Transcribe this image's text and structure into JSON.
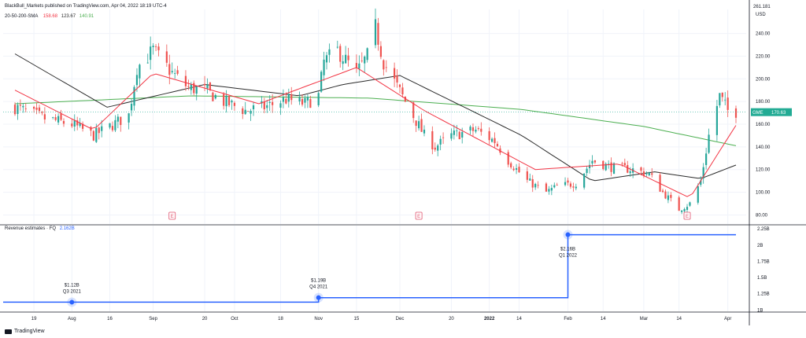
{
  "header": {
    "publisher": "BlackBull_Markets published on TradingView.com, Apr 04, 2022 18:19 UTC-4",
    "ma_label": "20-50-200-SMA",
    "ma_values": [
      "158.68",
      "123.67",
      "140.91"
    ]
  },
  "ticker": {
    "symbol": "GME",
    "price": "170.63"
  },
  "currency": "USD",
  "brand": "TradingView",
  "colors": {
    "up": "#26a69a",
    "down": "#ef5350",
    "sma20": "#f23645",
    "sma50": "#2b2b2b",
    "sma200": "#4caf50",
    "revenue": "#2962ff",
    "badge": "#22ab94",
    "earnings": "#e0506b"
  },
  "revenue_label": {
    "title": "Revenue estimates · FQ",
    "value": "2.162B"
  },
  "revenue_points": [
    {
      "value": "$1.12B",
      "period": "Q3 2021"
    },
    {
      "value": "$1.19B",
      "period": "Q4 2021"
    },
    {
      "value": "$2.16B",
      "period": "Q1 2022"
    }
  ],
  "earnings_markers": [
    "E",
    "E",
    "E"
  ],
  "price_axis": {
    "top_tick": "261.181",
    "ticks": [
      "240.00",
      "220.00",
      "200.00",
      "180.00",
      "160.00",
      "140.00",
      "120.00",
      "100.00",
      "80.00"
    ]
  },
  "revenue_axis": {
    "ticks": [
      "2.25B",
      "2B",
      "1.75B",
      "1.5B",
      "1.25B",
      "1B"
    ]
  },
  "time_axis": [
    "19",
    "Aug",
    "16",
    "Sep",
    "20",
    "Oct",
    "18",
    "Nov",
    "15",
    "Dec",
    "20",
    "2022",
    "14",
    "Feb",
    "14",
    "Mar",
    "14",
    "Apr"
  ],
  "chart_data": [
    {
      "type": "candlestick",
      "title": "GME",
      "unit": "USD",
      "x_range": [
        "2021-07-12",
        "2022-04-04"
      ],
      "ylim": [
        72,
        261.181
      ],
      "grid": true,
      "anchors_close": [
        [
          "2021-07-12",
          175
        ],
        [
          "2021-07-23",
          165
        ],
        [
          "2021-08-02",
          160
        ],
        [
          "2021-08-10",
          150
        ],
        [
          "2021-08-16",
          158
        ],
        [
          "2021-08-23",
          168
        ],
        [
          "2021-08-26",
          210
        ],
        [
          "2021-09-01",
          225
        ],
        [
          "2021-09-08",
          205
        ],
        [
          "2021-09-14",
          192
        ],
        [
          "2021-09-20",
          190
        ],
        [
          "2021-09-27",
          180
        ],
        [
          "2021-10-05",
          172
        ],
        [
          "2021-10-12",
          175
        ],
        [
          "2021-10-20",
          182
        ],
        [
          "2021-10-27",
          178
        ],
        [
          "2021-11-01",
          185
        ],
        [
          "2021-11-03",
          215
        ],
        [
          "2021-11-08",
          225
        ],
        [
          "2021-11-15",
          205
        ],
        [
          "2021-11-19",
          220
        ],
        [
          "2021-11-22",
          245
        ],
        [
          "2021-11-25",
          215
        ],
        [
          "2021-12-03",
          180
        ],
        [
          "2021-12-10",
          150
        ],
        [
          "2021-12-14",
          140
        ],
        [
          "2021-12-20",
          150
        ],
        [
          "2021-12-29",
          155
        ],
        [
          "2022-01-05",
          145
        ],
        [
          "2022-01-10",
          128
        ],
        [
          "2022-01-17",
          110
        ],
        [
          "2022-01-24",
          100
        ],
        [
          "2022-01-28",
          105
        ],
        [
          "2022-02-04",
          108
        ],
        [
          "2022-02-10",
          128
        ],
        [
          "2022-02-17",
          122
        ],
        [
          "2022-02-25",
          120
        ],
        [
          "2022-03-03",
          116
        ],
        [
          "2022-03-08",
          100
        ],
        [
          "2022-03-14",
          85
        ],
        [
          "2022-03-18",
          90
        ],
        [
          "2022-03-22",
          110
        ],
        [
          "2022-03-25",
          150
        ],
        [
          "2022-03-29",
          185
        ],
        [
          "2022-04-01",
          172
        ],
        [
          "2022-04-04",
          171
        ]
      ],
      "indicators": {
        "sma20_last": 158.68,
        "sma50_last": 123.67,
        "sma200_last": 140.91,
        "sma200_anchors": [
          [
            "2021-07-12",
            178
          ],
          [
            "2021-09-15",
            185
          ],
          [
            "2021-11-20",
            183
          ],
          [
            "2022-01-15",
            173
          ],
          [
            "2022-03-01",
            158
          ],
          [
            "2022-04-04",
            141
          ]
        ],
        "sma50_anchors": [
          [
            "2021-07-12",
            222
          ],
          [
            "2021-08-15",
            175
          ],
          [
            "2021-09-20",
            195
          ],
          [
            "2021-10-25",
            185
          ],
          [
            "2021-11-10",
            195
          ],
          [
            "2021-12-01",
            203
          ],
          [
            "2022-01-15",
            150
          ],
          [
            "2022-02-10",
            110
          ],
          [
            "2022-03-05",
            118
          ],
          [
            "2022-03-22",
            112
          ],
          [
            "2022-04-04",
            124
          ]
        ],
        "sma20_anchors": [
          [
            "2021-07-12",
            190
          ],
          [
            "2021-08-10",
            155
          ],
          [
            "2021-09-01",
            205
          ],
          [
            "2021-10-10",
            178
          ],
          [
            "2021-11-15",
            210
          ],
          [
            "2021-12-10",
            172
          ],
          [
            "2022-01-20",
            120
          ],
          [
            "2022-02-20",
            125
          ],
          [
            "2022-03-18",
            95
          ],
          [
            "2022-04-04",
            159
          ]
        ]
      },
      "earnings_dates": [
        "2021-09-08",
        "2021-12-08",
        "2022-03-17"
      ]
    },
    {
      "type": "step-line",
      "title": "Revenue estimates · FQ",
      "ylim": [
        0.98,
        2.3
      ],
      "values": [
        {
          "x": "2021-07-12",
          "y": 1.12
        },
        {
          "x": "2021-11-01",
          "y": 1.19
        },
        {
          "x": "2022-02-01",
          "y": 2.16
        },
        {
          "x": "2022-04-04",
          "y": 2.16
        }
      ]
    }
  ]
}
